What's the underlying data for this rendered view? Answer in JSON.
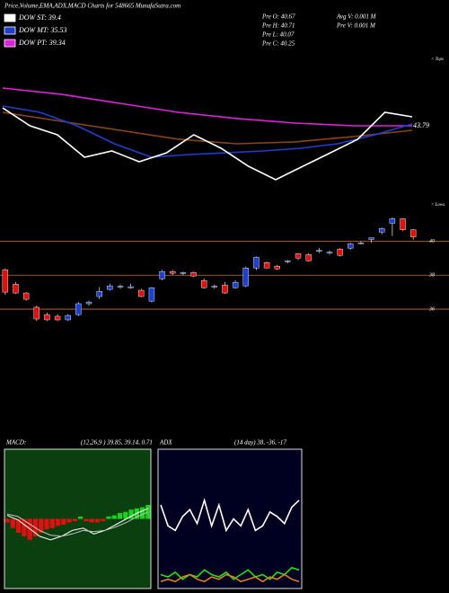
{
  "header": {
    "title": "Price,Volume,EMA,ADX,MACD Charts for 548665 MunafaSutra.com",
    "legend": [
      {
        "name": "DOW ST: 39.4",
        "color": "#ffffff"
      },
      {
        "name": "DOW MT: 35.53",
        "color": "#1e3fd0"
      },
      {
        "name": "DOW PT: 39.34",
        "color": "#e020e0"
      }
    ],
    "stats": [
      "Pre  O: 40.67",
      "Pre  H: 40.71",
      "Pre  L: 40.07",
      "Pre  C: 40.25"
    ],
    "volume": [
      "Avg V: 0.001 M",
      "Pre  V: 0.001 M"
    ]
  },
  "chart_data": [
    {
      "type": "line",
      "annotations": [
        "43.79",
        "< Tops",
        "< Lows"
      ],
      "ylim": [
        38,
        50
      ],
      "series": [
        {
          "color": "#e020e0",
          "values": [
            47.06,
            46.52,
            45.74,
            44.97,
            44.43,
            44.04,
            43.81,
            43.81
          ]
        },
        {
          "color": "#8b4513",
          "values": [
            44.97,
            44.19,
            43.42,
            42.65,
            42.26,
            42.42,
            42.88,
            43.42
          ]
        },
        {
          "color": "#1e3fd0",
          "values": [
            45.51,
            44.97,
            43.81,
            42.26,
            41.1,
            41.33,
            41.48,
            41.64,
            41.87,
            42.26,
            43.03,
            43.96
          ]
        },
        {
          "color": "#ffffff",
          "values": [
            45.35,
            43.81,
            43.03,
            41.1,
            41.64,
            40.71,
            41.48,
            43.03,
            41.87,
            40.32,
            39.16,
            40.32,
            41.48,
            42.64,
            44.97,
            44.58
          ]
        }
      ]
    },
    {
      "type": "candlestick",
      "ylim": [
        34.1,
        41.5
      ],
      "yticks": [
        36,
        38,
        40
      ],
      "grid_color": "#c87533",
      "up_color": "#1e3fd0",
      "down_color": "#e01010",
      "open": [
        38.32,
        37.47,
        36.95,
        36.11,
        35.68,
        35.58,
        35.37,
        35.68,
        36.32,
        36.74,
        37.16,
        37.3,
        37.26,
        37.11,
        36.47,
        37.79,
        38.21,
        38.1,
        38.16,
        37.68,
        37.3,
        37.42,
        37.26,
        37.37,
        38.42,
        38.74,
        38.53,
        38.8,
        39.26,
        39.21,
        39.4,
        39.3,
        39.53,
        39.58,
        39.85,
        40.1,
        40.53,
        41.05,
        41.32,
        40.67
      ],
      "high": [
        38.4,
        37.6,
        37.0,
        36.2,
        35.8,
        35.7,
        35.7,
        36.4,
        36.5,
        37.3,
        37.5,
        37.45,
        37.5,
        37.2,
        37.3,
        38.3,
        38.3,
        38.2,
        38.2,
        37.8,
        37.45,
        37.6,
        37.7,
        38.5,
        39.1,
        38.8,
        38.6,
        38.9,
        39.3,
        39.3,
        39.6,
        39.45,
        39.6,
        39.9,
        40.0,
        40.2,
        40.8,
        41.4,
        41.35,
        40.71
      ],
      "low": [
        36.85,
        36.9,
        36.5,
        35.3,
        35.3,
        35.3,
        35.3,
        35.6,
        36.2,
        36.6,
        37.1,
        37.2,
        37.2,
        36.7,
        36.4,
        37.7,
        38.0,
        38.0,
        37.9,
        37.2,
        37.2,
        36.9,
        37.2,
        37.3,
        38.3,
        38.4,
        38.3,
        38.7,
        38.9,
        38.8,
        39.3,
        39.2,
        39.1,
        39.5,
        39.8,
        39.9,
        40.4,
        40.3,
        40.6,
        40.07
      ],
      "close": [
        37.0,
        36.95,
        36.58,
        35.42,
        35.37,
        35.37,
        35.63,
        36.32,
        36.42,
        37.05,
        37.37,
        37.35,
        37.32,
        36.74,
        37.26,
        38.21,
        38.11,
        38.15,
        37.95,
        37.26,
        37.35,
        36.95,
        37.58,
        38.42,
        39.05,
        38.42,
        38.37,
        38.84,
        39.0,
        38.84,
        39.45,
        39.35,
        39.16,
        39.84,
        39.9,
        40.2,
        40.74,
        41.32,
        40.67,
        40.25
      ]
    },
    {
      "type": "macd",
      "title": "MACD:",
      "subtitle": "(12,26,9 ) 39.85, 39.14, 0.71",
      "ylim": [
        -0.6,
        0.6
      ],
      "background": "#0a4010",
      "series": [
        {
          "color": "#ffffff",
          "values": [
            0.03,
            -0.01,
            -0.08,
            -0.15,
            -0.18,
            -0.15,
            -0.1,
            -0.08,
            -0.13,
            -0.1,
            -0.05,
            0.0,
            0.05,
            0.09
          ]
        },
        {
          "color": "#c0c0c0",
          "values": [
            0.04,
            0.02,
            -0.04,
            -0.1,
            -0.14,
            -0.15,
            -0.13,
            -0.1,
            -0.11,
            -0.1,
            -0.07,
            -0.03,
            0.02,
            0.06
          ]
        }
      ],
      "bars": [
        -0.03,
        -0.08,
        -0.12,
        -0.15,
        -0.18,
        -0.15,
        -0.12,
        -0.09,
        -0.08,
        -0.06,
        -0.05,
        -0.03,
        -0.02,
        0.02,
        -0.02,
        -0.03,
        -0.03,
        -0.02,
        0.02,
        0.03,
        0.05,
        0.06,
        0.08,
        0.09,
        0.1,
        0.12
      ],
      "up_color": "#20d020",
      "down_color": "#e01010"
    },
    {
      "type": "adx",
      "title": "ADX",
      "subtitle": "(14 day) 38, -36, -17",
      "ylim": [
        0,
        60
      ],
      "background": "#000020",
      "series": [
        {
          "color": "#ffffff",
          "values": [
            36,
            27,
            25,
            31,
            34,
            28,
            38,
            27,
            36,
            25,
            30,
            27,
            34,
            25,
            27,
            33,
            31,
            28,
            35,
            38
          ]
        },
        {
          "color": "#20e020",
          "values": [
            6,
            5,
            7,
            4,
            6,
            5,
            8,
            6,
            5,
            7,
            4,
            6,
            8,
            5,
            6,
            4,
            7,
            6,
            9,
            8
          ]
        },
        {
          "color": "#e08020",
          "values": [
            3,
            4,
            3,
            5,
            6,
            4,
            3,
            5,
            4,
            6,
            5,
            3,
            4,
            5,
            3,
            5,
            4,
            6,
            4,
            3
          ]
        }
      ]
    }
  ]
}
